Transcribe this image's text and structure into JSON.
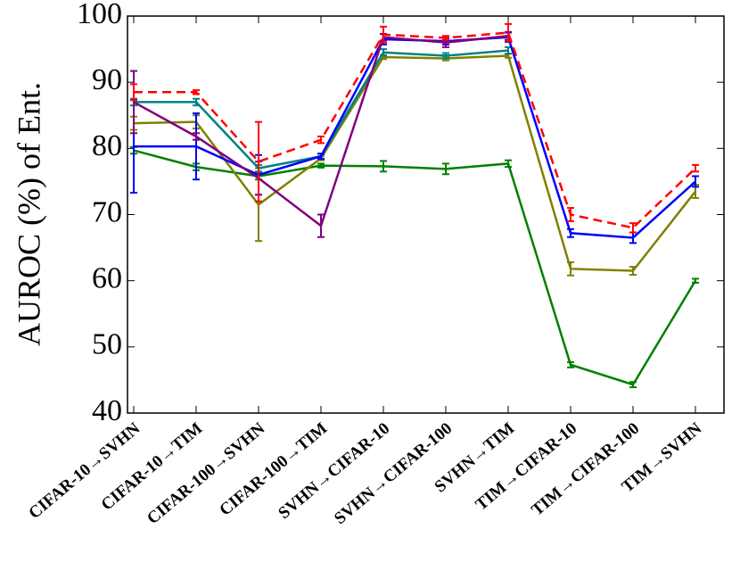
{
  "chart_data": {
    "type": "line",
    "y_label": "AUROC (%) of Ent.",
    "categories": [
      "CIFAR-10→SVHN",
      "CIFAR-10→TIM",
      "CIFAR-100→SVHN",
      "CIFAR-100→TIM",
      "SVHN→CIFAR-10",
      "SVHN→CIFAR-100",
      "SVHN→TIM",
      "TIM→CIFAR-10",
      "TIM→CIFAR-100",
      "TIM→SVHN"
    ],
    "ylim": [
      40,
      100
    ],
    "yticks": [
      40,
      50,
      60,
      70,
      80,
      90,
      100
    ],
    "series": [
      {
        "color": "#008000",
        "dash": false,
        "values": [
          79.7,
          77.2,
          75.8,
          77.4,
          77.3,
          76.9,
          77.7,
          47.3,
          44.3,
          60.0
        ],
        "errors": [
          0.5,
          0.5,
          0.5,
          0.3,
          0.8,
          0.8,
          0.5,
          0.4,
          0.4,
          0.3
        ]
      },
      {
        "color": "#808000",
        "dash": false,
        "values": [
          83.8,
          84.0,
          71.5,
          78.5,
          93.8,
          93.6,
          94.0,
          61.8,
          61.5,
          73.5
        ],
        "errors": [
          1.0,
          1.0,
          5.5,
          0.3,
          0.3,
          0.3,
          0.3,
          1.0,
          0.6,
          1.0
        ]
      },
      {
        "color": "#008080",
        "dash": false,
        "values": [
          87.0,
          87.0,
          77.0,
          78.8,
          94.5,
          94.0,
          94.8,
          null,
          null,
          null
        ],
        "errors": [
          0.5,
          0.5,
          0.5,
          0.4,
          0.5,
          0.4,
          0.5,
          null,
          null,
          null
        ]
      },
      {
        "color": "#0000ff",
        "dash": false,
        "values": [
          80.3,
          80.3,
          76.0,
          78.8,
          96.5,
          96.2,
          96.8,
          67.2,
          66.5,
          75.0
        ],
        "errors": [
          7.0,
          5.0,
          3.0,
          0.4,
          0.8,
          0.5,
          0.7,
          0.6,
          0.8,
          0.8
        ]
      },
      {
        "color": "#800080",
        "dash": false,
        "values": [
          87.0,
          81.8,
          75.5,
          68.3,
          96.8,
          96.0,
          97.0,
          null,
          null,
          null
        ],
        "errors": [
          4.7,
          0.5,
          2.5,
          1.7,
          0.5,
          0.7,
          0.6,
          null,
          null,
          null
        ]
      },
      {
        "color": "#ff0000",
        "dash": true,
        "values": [
          88.5,
          88.5,
          78.0,
          81.3,
          97.2,
          96.7,
          97.5,
          70.0,
          68.0,
          77.0
        ],
        "errors": [
          1.2,
          0.3,
          6.0,
          0.5,
          1.2,
          0.3,
          1.3,
          1.0,
          0.7,
          0.5
        ]
      }
    ]
  }
}
